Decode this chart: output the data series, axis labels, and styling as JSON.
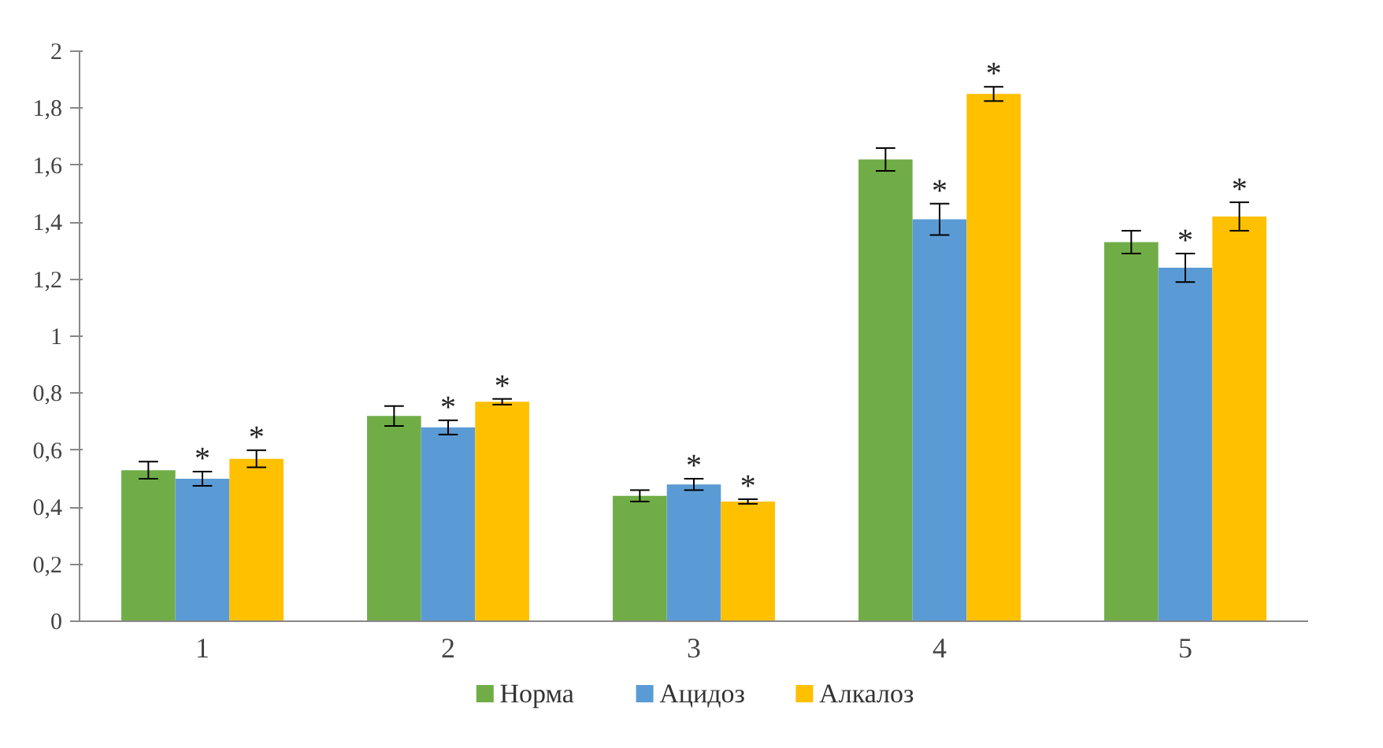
{
  "chart_data": {
    "type": "bar",
    "categories": [
      "1",
      "2",
      "3",
      "4",
      "5"
    ],
    "series": [
      {
        "name": "Норма",
        "color": "#70ad47",
        "values": [
          0.53,
          0.72,
          0.44,
          1.62,
          1.33
        ],
        "errors": [
          0.03,
          0.035,
          0.02,
          0.04,
          0.04
        ]
      },
      {
        "name": "Ацидоз",
        "color": "#5b9bd5",
        "values": [
          0.5,
          0.68,
          0.48,
          1.41,
          1.24
        ],
        "errors": [
          0.025,
          0.025,
          0.02,
          0.055,
          0.05
        ]
      },
      {
        "name": "Алкалоз",
        "color": "#ffc000",
        "values": [
          0.57,
          0.77,
          0.42,
          1.85,
          1.42
        ],
        "errors": [
          0.03,
          0.01,
          0.008,
          0.025,
          0.05
        ]
      }
    ],
    "ylim": [
      0,
      2
    ],
    "yticks": [
      0,
      {
        "value": 0.2,
        "label": "0,2"
      },
      {
        "value": 0.4,
        "label": "0,4"
      },
      {
        "value": 0.6,
        "label": "0,6"
      },
      {
        "value": 0.8,
        "label": "0,8"
      },
      1,
      {
        "value": 1.2,
        "label": "1,2"
      },
      {
        "value": 1.4,
        "label": "1,4"
      },
      {
        "value": 1.6,
        "label": "1,6"
      },
      {
        "value": 1.8,
        "label": "1,8"
      },
      2
    ],
    "annotations": [
      "*",
      "*",
      "*",
      "*",
      "*",
      "*",
      "*",
      "*",
      "*",
      "*"
    ],
    "legend": "bottom",
    "grid": false
  }
}
